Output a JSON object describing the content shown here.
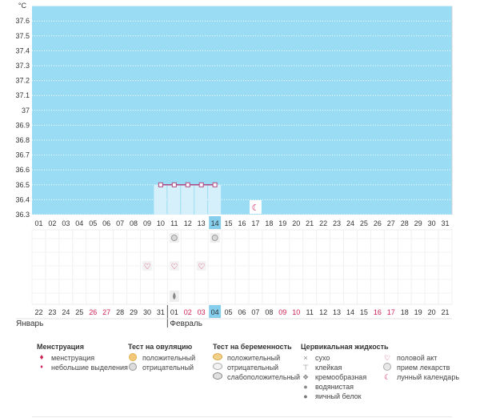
{
  "chart_data": {
    "type": "line",
    "unit_label": "°C",
    "y_ticks": [
      "36.3",
      "36.4",
      "36.5",
      "36.6",
      "36.7",
      "36.8",
      "36.9",
      "37",
      "37.1",
      "37.2",
      "37.3",
      "37.4",
      "37.5",
      "37.6"
    ],
    "ylim": [
      36.3,
      37.7
    ],
    "cycle_days": [
      "01",
      "02",
      "03",
      "04",
      "05",
      "06",
      "07",
      "08",
      "09",
      "10",
      "11",
      "12",
      "13",
      "14",
      "15",
      "16",
      "17",
      "18",
      "19",
      "20",
      "21",
      "22",
      "23",
      "24",
      "25",
      "26",
      "27",
      "28",
      "29",
      "30",
      "31"
    ],
    "calendar_days": [
      "22",
      "23",
      "24",
      "25",
      "26",
      "27",
      "28",
      "29",
      "30",
      "31",
      "01",
      "02",
      "03",
      "04",
      "05",
      "06",
      "07",
      "08",
      "09",
      "10",
      "11",
      "12",
      "13",
      "14",
      "15",
      "16",
      "17",
      "18",
      "19",
      "20",
      "21"
    ],
    "calendar_red_indices": [
      4,
      5,
      11,
      12,
      18,
      19,
      25,
      26
    ],
    "today_index": 13,
    "month_labels": [
      {
        "label": "Январь",
        "start_index": 0
      },
      {
        "label": "Февраль",
        "start_index": 10
      }
    ],
    "series": [
      {
        "x": [
          10,
          11,
          12,
          13,
          14
        ],
        "y": [
          36.5,
          36.5,
          36.5,
          36.5,
          36.5
        ]
      }
    ],
    "period_bars": {
      "from": 10,
      "to": 14,
      "value": 36.5
    },
    "lunar_day": 17,
    "markers": {
      "ovulation_negative": [
        11,
        14
      ],
      "intercourse": [
        9,
        11,
        13
      ],
      "watery": [
        11
      ]
    },
    "colors": {
      "plot_bg": "#99dcf3",
      "line": "#b04580",
      "bar": "#d6f0fb",
      "today": "#86cfec",
      "red": "#cc2255",
      "grid": "#ffffff"
    }
  },
  "legend": {
    "menstruation": {
      "title": "Менструация",
      "items": [
        "менструация",
        "небольшие выделения"
      ]
    },
    "ovulation": {
      "title": "Тест на овуляцию",
      "items": [
        "положительный",
        "отрицательный"
      ]
    },
    "pregnancy": {
      "title": "Тест на беременность",
      "items": [
        "положительный",
        "отрицательный",
        "слабоположительный"
      ]
    },
    "cervical": {
      "title": "Цервикальная жидкость",
      "items": [
        "сухо",
        "клейкая",
        "кремообразная",
        "водянистая",
        "яичный белок"
      ]
    },
    "other": {
      "items": [
        "половой акт",
        "прием лекарств",
        "лунный календарь"
      ]
    }
  }
}
